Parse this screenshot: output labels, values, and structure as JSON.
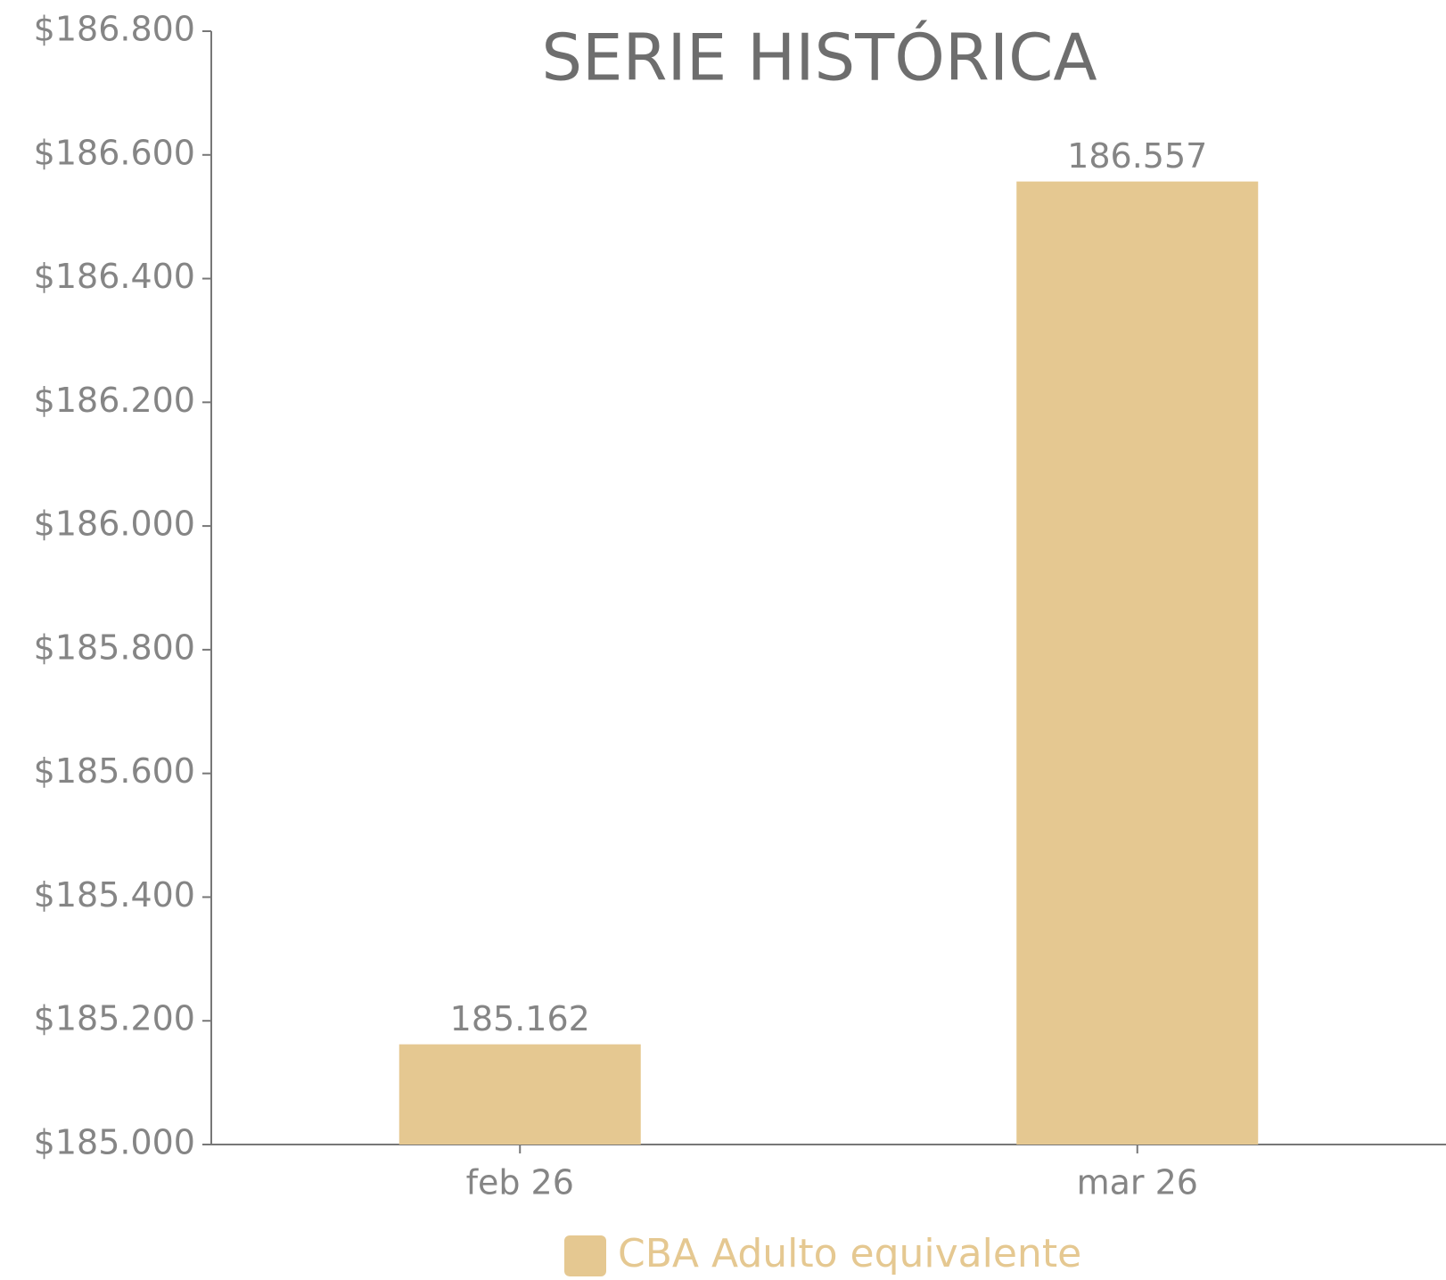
{
  "chart_data": {
    "type": "bar",
    "title": "SERIE HISTÓRICA",
    "categories": [
      "feb 26",
      "mar 26"
    ],
    "series": [
      {
        "name": "CBA Adulto equivalente",
        "color": "#e5c891",
        "values": [
          185162,
          186557
        ],
        "value_labels": [
          "185.162",
          "186.557"
        ]
      }
    ],
    "ylim": [
      185000,
      186800
    ],
    "yticks": [
      {
        "value": 185000,
        "label": "$185.000"
      },
      {
        "value": 185200,
        "label": "$185.200"
      },
      {
        "value": 185400,
        "label": "$185.400"
      },
      {
        "value": 185600,
        "label": "$185.600"
      },
      {
        "value": 185800,
        "label": "$185.800"
      },
      {
        "value": 186000,
        "label": "$186.000"
      },
      {
        "value": 186200,
        "label": "$186.200"
      },
      {
        "value": 186400,
        "label": "$186.400"
      },
      {
        "value": 186600,
        "label": "$186.600"
      },
      {
        "value": 186800,
        "label": "$186.800"
      }
    ],
    "grid": false,
    "legend": "bottom"
  }
}
